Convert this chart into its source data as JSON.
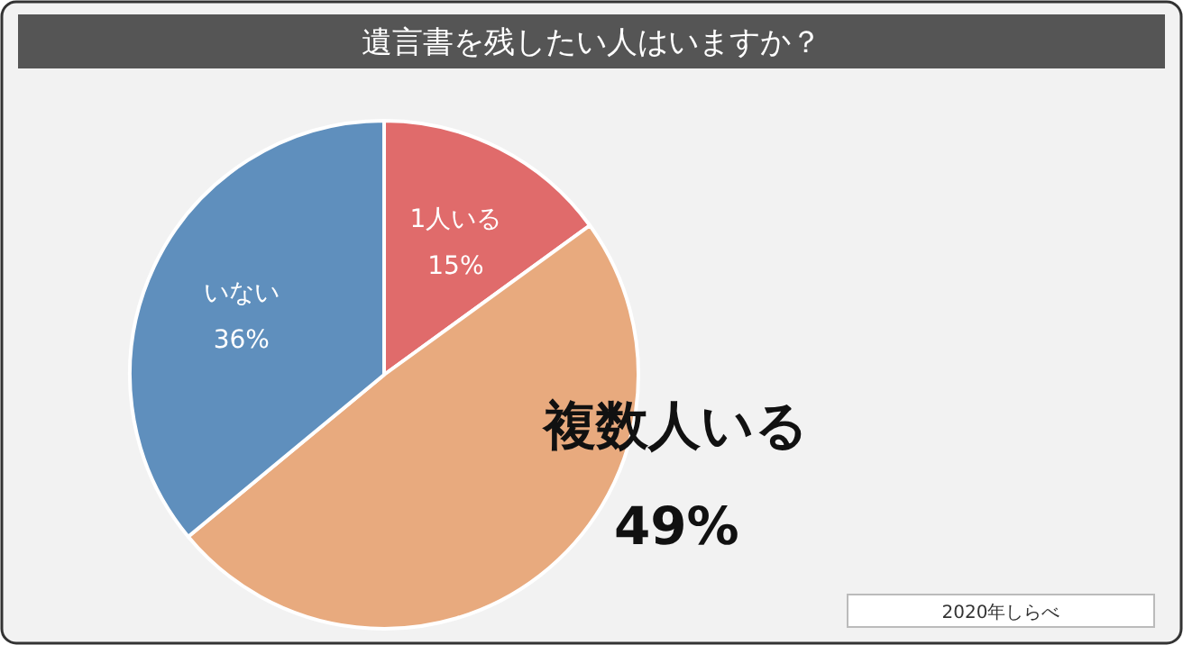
{
  "chart_data": {
    "type": "pie",
    "title": "遺言書を残したい人はいますか？",
    "categories": [
      "1人いる",
      "複数人いる",
      "いない"
    ],
    "values": [
      15,
      49,
      36
    ],
    "colors": [
      "#e06b6b",
      "#e8aa7e",
      "#5f8fbd"
    ],
    "value_labels": [
      "15%",
      "49%",
      "36%"
    ],
    "annotations": [
      "2020年しらべ"
    ]
  }
}
